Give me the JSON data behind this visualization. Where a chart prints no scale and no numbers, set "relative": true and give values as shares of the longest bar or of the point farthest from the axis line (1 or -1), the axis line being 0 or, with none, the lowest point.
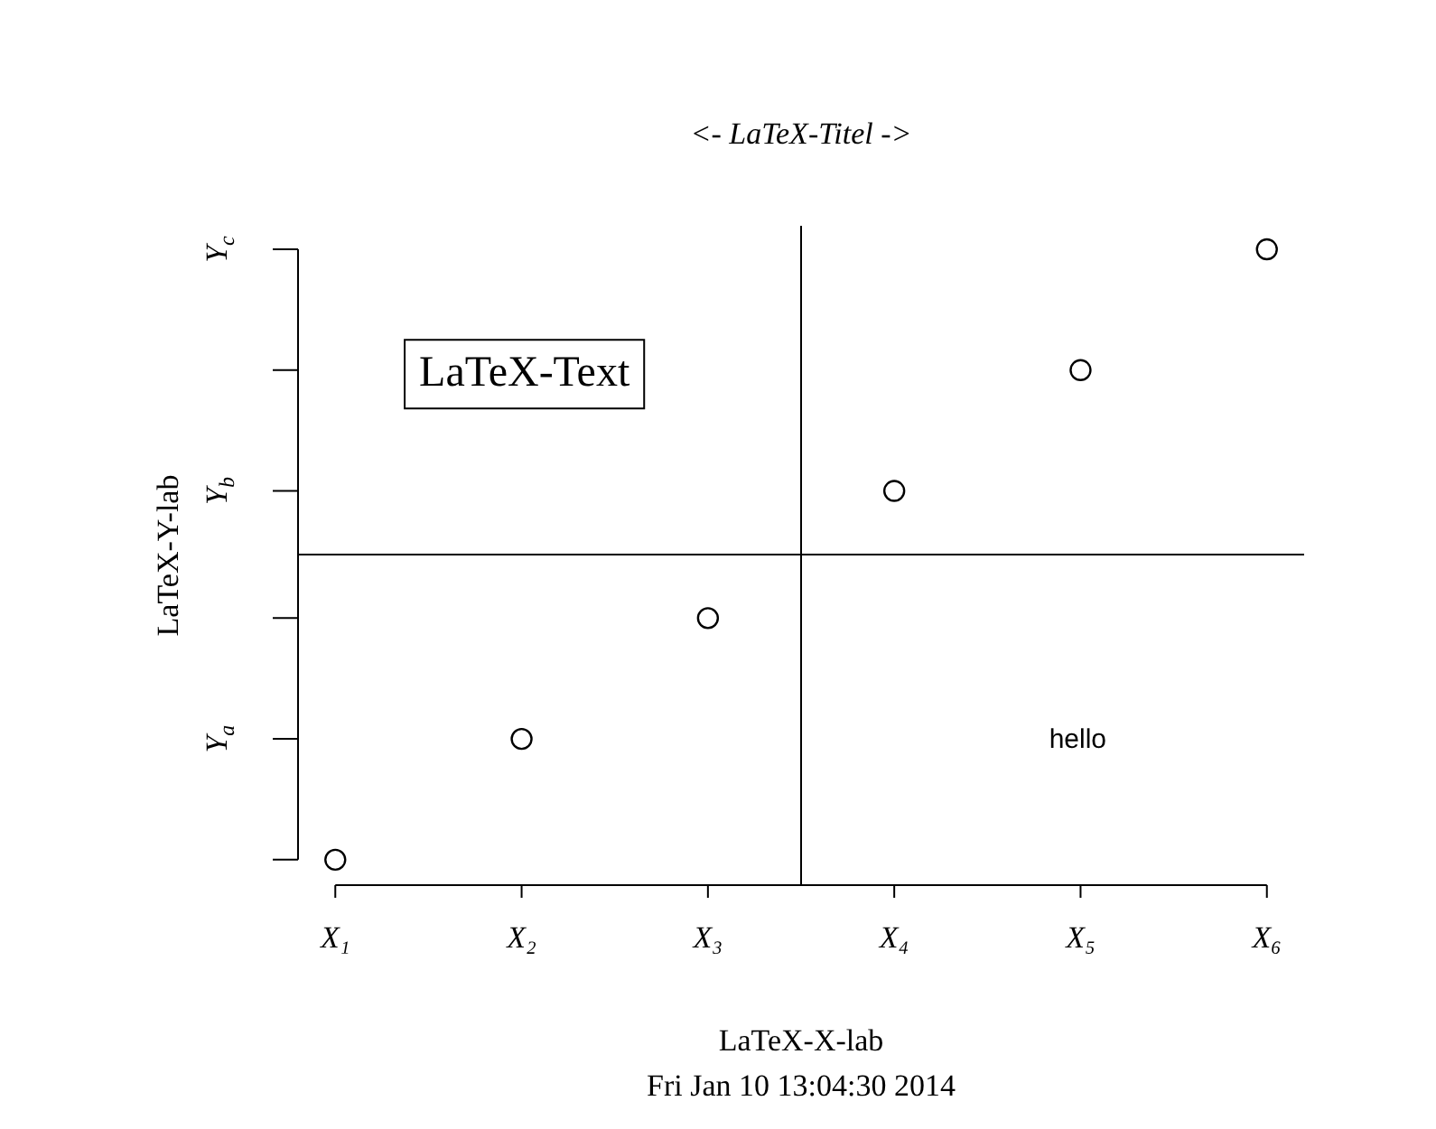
{
  "chart_data": {
    "type": "scatter",
    "title": "<- LaTeX-Titel ->",
    "subtitle": "Fri Jan 10 13:04:30 2014",
    "xlabel": "LaTeX-X-lab",
    "ylabel": "LaTeX-Y-lab",
    "categories": [
      "X₁",
      "X₂",
      "X₃",
      "X₄",
      "X₅",
      "X₆"
    ],
    "values": [
      0.04,
      0.23,
      0.42,
      0.62,
      0.81,
      1
    ],
    "relative": true,
    "color": "#000000",
    "marker": "circle",
    "ref_lines": [
      {
        "axis": "y",
        "value": 0.52,
        "color": "#000000"
      }
    ],
    "annotations": [
      "LaTeX-Text",
      "hello",
      "Y$_{a}$",
      "Y$_{b}$",
      "Y$_{c}$"
    ]
  }
}
